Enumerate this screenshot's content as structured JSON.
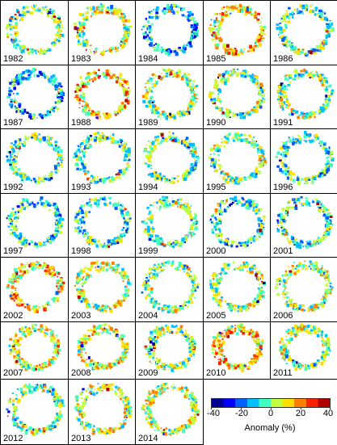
{
  "panels": [
    {
      "year": "1982",
      "bias": 0.0
    },
    {
      "year": "1983",
      "bias": 0.1
    },
    {
      "year": "1984",
      "bias": -0.3
    },
    {
      "year": "1985",
      "bias": 0.3
    },
    {
      "year": "1986",
      "bias": -0.1
    },
    {
      "year": "1987",
      "bias": -0.35
    },
    {
      "year": "1988",
      "bias": 0.35
    },
    {
      "year": "1989",
      "bias": 0.05
    },
    {
      "year": "1990",
      "bias": 0.0
    },
    {
      "year": "1991",
      "bias": 0.05
    },
    {
      "year": "1992",
      "bias": -0.1
    },
    {
      "year": "1993",
      "bias": -0.1
    },
    {
      "year": "1994",
      "bias": -0.05
    },
    {
      "year": "1995",
      "bias": 0.0
    },
    {
      "year": "1996",
      "bias": -0.15
    },
    {
      "year": "1997",
      "bias": -0.2
    },
    {
      "year": "1998",
      "bias": -0.15
    },
    {
      "year": "1999",
      "bias": 0.0
    },
    {
      "year": "2000",
      "bias": -0.2
    },
    {
      "year": "2001",
      "bias": -0.1
    },
    {
      "year": "2002",
      "bias": 0.3
    },
    {
      "year": "2003",
      "bias": 0.15
    },
    {
      "year": "2004",
      "bias": 0.0
    },
    {
      "year": "2005",
      "bias": 0.05
    },
    {
      "year": "2006",
      "bias": 0.1
    },
    {
      "year": "2007",
      "bias": 0.2
    },
    {
      "year": "2008",
      "bias": 0.2
    },
    {
      "year": "2009",
      "bias": 0.05
    },
    {
      "year": "2010",
      "bias": 0.35
    },
    {
      "year": "2011",
      "bias": 0.05
    },
    {
      "year": "2012",
      "bias": 0.0
    },
    {
      "year": "2013",
      "bias": 0.1
    },
    {
      "year": "2014",
      "bias": 0.15
    }
  ],
  "legend": {
    "label": "Anomaly (%)",
    "ticks": [
      "-40",
      "-20",
      "0",
      "20",
      "40"
    ],
    "range": [
      -40,
      40
    ],
    "colors": [
      "#00008f",
      "#0000ff",
      "#0060ff",
      "#00bfff",
      "#40ffbf",
      "#bfff40",
      "#ffdf00",
      "#ff8000",
      "#ff2000",
      "#b00000"
    ]
  }
}
